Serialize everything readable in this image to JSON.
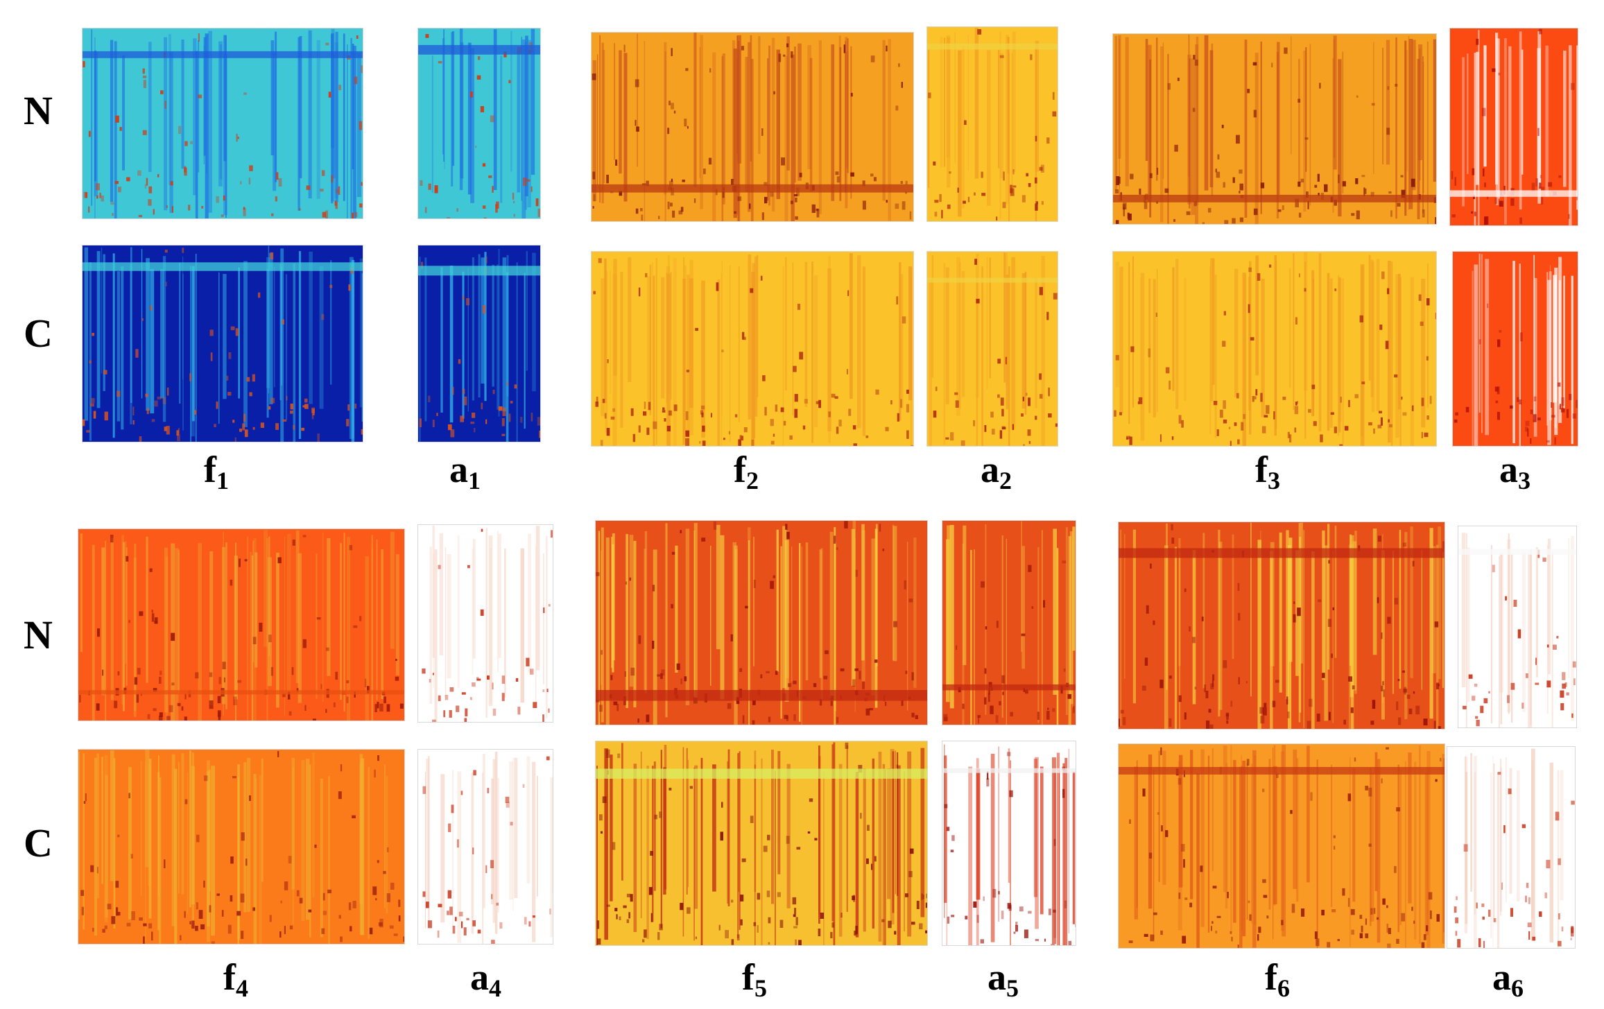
{
  "row_labels": {
    "noisy": "N",
    "clean": "C"
  },
  "captions": {
    "f1": {
      "base": "f",
      "sub": "1"
    },
    "a1": {
      "base": "a",
      "sub": "1"
    },
    "f2": {
      "base": "f",
      "sub": "2"
    },
    "a2": {
      "base": "a",
      "sub": "2"
    },
    "f3": {
      "base": "f",
      "sub": "3"
    },
    "a3": {
      "base": "a",
      "sub": "3"
    },
    "f4": {
      "base": "f",
      "sub": "4"
    },
    "a4": {
      "base": "a",
      "sub": "4"
    },
    "f5": {
      "base": "f",
      "sub": "5"
    },
    "a5": {
      "base": "a",
      "sub": "5"
    },
    "f6": {
      "base": "f",
      "sub": "6"
    },
    "a6": {
      "base": "a",
      "sub": "6"
    }
  },
  "palettes": {
    "jet_noisy": {
      "base": "#3fc7d6",
      "stripe": "#1f6fe0",
      "hot": "#d23a12",
      "band": "#1e5bd8"
    },
    "jet_clean": {
      "base": "#0a1fa8",
      "stripe": "#2fb0e8",
      "hot": "#e0561a",
      "band": "#3fd0d8"
    },
    "orange": {
      "base": "#f5a020",
      "stripe": "#c8501a",
      "hot": "#8a1a0a",
      "band": "#b83a10"
    },
    "yellow": {
      "base": "#fbc22a",
      "stripe": "#f09a20",
      "hot": "#b02a10",
      "band": "#f0d040"
    },
    "red": {
      "base": "#fb4a12",
      "stripe": "#ffffff",
      "hot": "#b01008",
      "band": "#ffffff"
    },
    "red_orange": {
      "base": "#fb5a18",
      "stripe": "#f0a030",
      "hot": "#a01a0a",
      "band": "#e85010"
    },
    "orange_clean": {
      "base": "#fb7a1a",
      "stripe": "#f0b030",
      "hot": "#a02010",
      "band": "#f09a2a"
    },
    "white_sparse": {
      "base": "#ffffff",
      "stripe": "#f4d0c0",
      "hot": "#c8361a",
      "band": "#f8f8f8"
    },
    "dense_red": {
      "base": "#e8501a",
      "stripe": "#f6d040",
      "hot": "#9a1208",
      "band": "#c02810"
    },
    "yellow_dense": {
      "base": "#f7c030",
      "stripe": "#c02010",
      "hot": "#8a1008",
      "band": "#d8f060"
    },
    "white_dense": {
      "base": "#ffffff",
      "stripe": "#d83010",
      "hot": "#9a1008",
      "band": "#f0f0f0"
    },
    "orange_mix": {
      "base": "#f89a24",
      "stripe": "#e05a18",
      "hot": "#9a1a0a",
      "band": "#c83a12"
    }
  }
}
